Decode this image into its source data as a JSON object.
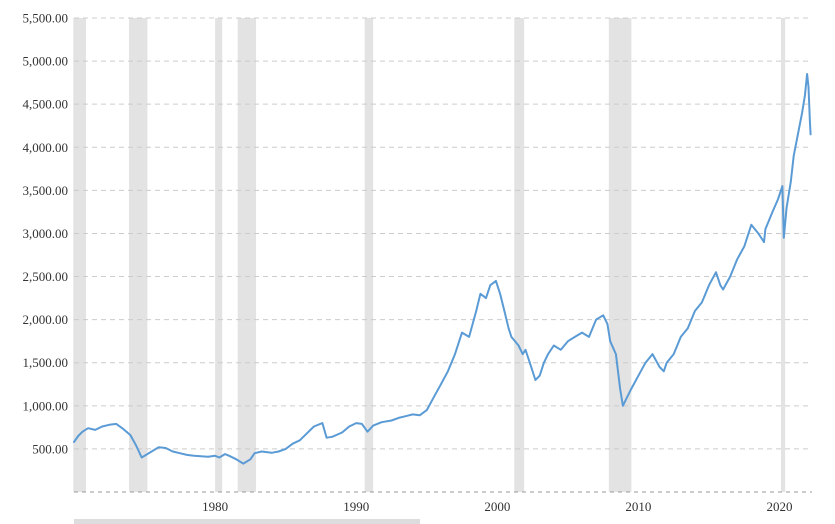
{
  "chart_data": {
    "type": "line",
    "title": "",
    "xlabel": "",
    "ylabel": "",
    "xlim": [
      1970.0,
      2022.3
    ],
    "ylim": [
      0,
      5500
    ],
    "y_ticks": [
      500,
      1000,
      1500,
      2000,
      2500,
      3000,
      3500,
      4000,
      4500,
      5000,
      5500
    ],
    "y_tick_labels": [
      "500.00",
      "1,000.00",
      "1,500.00",
      "2,000.00",
      "2,500.00",
      "3,000.00",
      "3,500.00",
      "4,000.00",
      "4,500.00",
      "5,000.00",
      "5,500.00"
    ],
    "x_ticks": [
      1980,
      1990,
      2000,
      2010,
      2020
    ],
    "x_tick_labels": [
      "1980",
      "1990",
      "2000",
      "2010",
      "2020"
    ],
    "grid": true,
    "recession_shading": [
      [
        1969.95,
        1970.85
      ],
      [
        1973.9,
        1975.2
      ],
      [
        1980.0,
        1980.5
      ],
      [
        1981.6,
        1982.9
      ],
      [
        1990.6,
        1991.2
      ],
      [
        2001.2,
        2001.9
      ],
      [
        2007.9,
        2009.5
      ],
      [
        2020.1,
        2020.4
      ]
    ],
    "series": [
      {
        "color": "#5b9bd5",
        "x": [
          1970.0,
          1970.3,
          1970.6,
          1971.0,
          1971.5,
          1972.0,
          1972.5,
          1973.0,
          1973.5,
          1974.0,
          1974.4,
          1974.8,
          1975.0,
          1975.5,
          1976.0,
          1976.5,
          1977.0,
          1977.5,
          1978.0,
          1978.5,
          1979.0,
          1979.5,
          1980.0,
          1980.3,
          1980.7,
          1981.0,
          1981.5,
          1982.0,
          1982.5,
          1982.8,
          1983.3,
          1984.0,
          1984.5,
          1985.0,
          1985.5,
          1986.0,
          1986.5,
          1987.0,
          1987.6,
          1987.9,
          1988.3,
          1989.0,
          1989.5,
          1990.0,
          1990.4,
          1990.8,
          1991.2,
          1991.8,
          1992.5,
          1993.0,
          1993.5,
          1994.0,
          1994.5,
          1995.0,
          1995.5,
          1996.0,
          1996.5,
          1997.0,
          1997.5,
          1998.0,
          1998.5,
          1998.8,
          1999.2,
          1999.5,
          1999.9,
          2000.2,
          2000.5,
          2000.8,
          2001.0,
          2001.5,
          2001.8,
          2002.0,
          2002.3,
          2002.7,
          2003.0,
          2003.3,
          2003.6,
          2004.0,
          2004.5,
          2005.0,
          2005.5,
          2006.0,
          2006.5,
          2007.0,
          2007.5,
          2007.8,
          2008.0,
          2008.4,
          2008.7,
          2008.9,
          2009.2,
          2009.5,
          2010.0,
          2010.5,
          2011.0,
          2011.5,
          2011.8,
          2012.0,
          2012.5,
          2013.0,
          2013.5,
          2014.0,
          2014.5,
          2015.0,
          2015.5,
          2015.8,
          2016.0,
          2016.5,
          2017.0,
          2017.5,
          2018.0,
          2018.5,
          2018.9,
          2019.0,
          2019.5,
          2019.9,
          2020.2,
          2020.3,
          2020.5,
          2020.8,
          2021.0,
          2021.3,
          2021.6,
          2021.8,
          2021.95,
          2022.05,
          2022.1,
          2022.15,
          2022.2
        ],
        "y": [
          580,
          650,
          700,
          740,
          720,
          760,
          780,
          790,
          730,
          660,
          540,
          400,
          420,
          470,
          520,
          510,
          470,
          450,
          430,
          420,
          415,
          410,
          420,
          400,
          440,
          420,
          380,
          330,
          380,
          450,
          470,
          455,
          470,
          500,
          560,
          600,
          680,
          760,
          800,
          630,
          640,
          690,
          760,
          800,
          790,
          700,
          770,
          810,
          830,
          860,
          880,
          900,
          890,
          950,
          1100,
          1250,
          1400,
          1600,
          1850,
          1800,
          2100,
          2300,
          2250,
          2400,
          2450,
          2300,
          2100,
          1900,
          1800,
          1700,
          1600,
          1650,
          1500,
          1300,
          1350,
          1500,
          1600,
          1700,
          1650,
          1750,
          1800,
          1850,
          1800,
          2000,
          2050,
          1950,
          1750,
          1600,
          1200,
          1000,
          1100,
          1200,
          1350,
          1500,
          1600,
          1450,
          1400,
          1500,
          1600,
          1800,
          1900,
          2100,
          2200,
          2400,
          2550,
          2400,
          2350,
          2500,
          2700,
          2850,
          3100,
          3000,
          2900,
          3050,
          3250,
          3400,
          3550,
          2950,
          3300,
          3600,
          3900,
          4150,
          4400,
          4600,
          4850,
          4700,
          4500,
          4300,
          4150
        ]
      }
    ]
  }
}
